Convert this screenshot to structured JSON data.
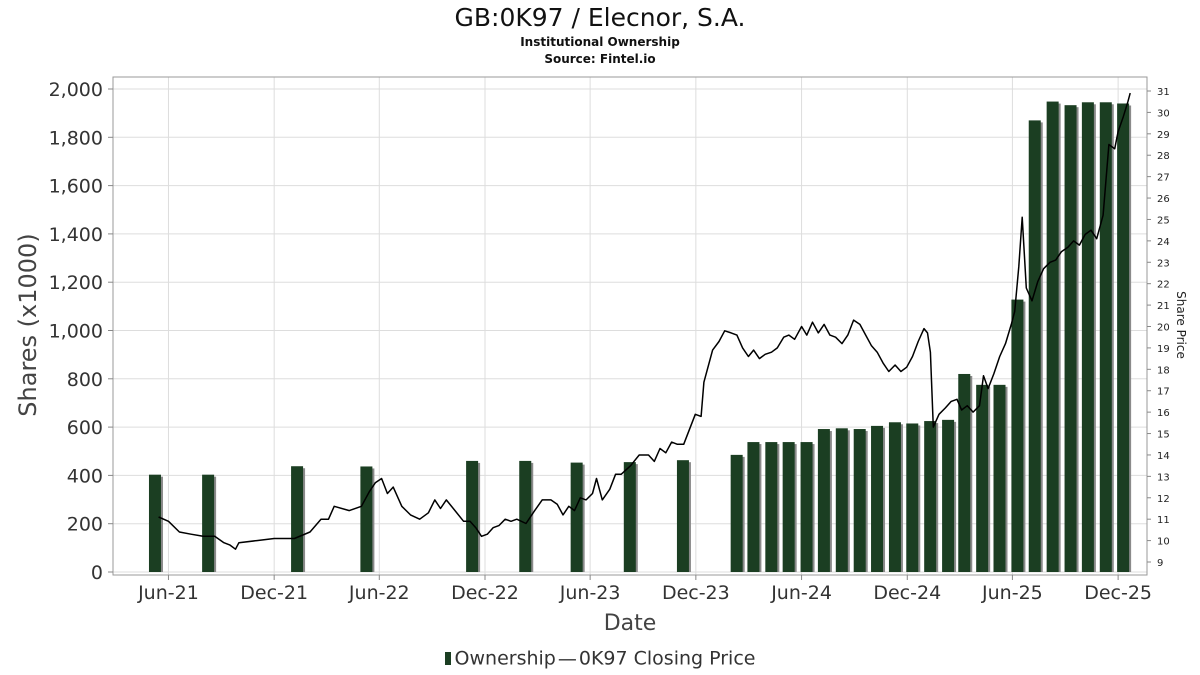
{
  "title": "GB:0K97 / Elecnor, S.A.",
  "subtitle": "Institutional Ownership",
  "source": "Source: Fintel.io",
  "legend": {
    "ownership": "Ownership",
    "separator": "—",
    "price": "0K97 Closing Price"
  },
  "colors": {
    "bar": "#1b3e22",
    "bar_shadow": "#8a8a8a",
    "line": "#000000",
    "grid": "#dddddd"
  },
  "chart_data": {
    "type": "bar+line",
    "xlabel": "Date",
    "ylabel": "Shares (x1000)",
    "y2label": "Share Price",
    "ylim": [
      0,
      2000
    ],
    "y2lim": [
      9,
      31
    ],
    "xlim": [
      "2021-02-25",
      "2026-01-20"
    ],
    "grid": true,
    "x_ticks": [
      {
        "label": "Jun-21",
        "date": "2021-06-01"
      },
      {
        "label": "Dec-21",
        "date": "2021-12-01"
      },
      {
        "label": "Jun-22",
        "date": "2022-06-01"
      },
      {
        "label": "Dec-22",
        "date": "2022-12-01"
      },
      {
        "label": "Jun-23",
        "date": "2023-06-01"
      },
      {
        "label": "Dec-23",
        "date": "2023-12-01"
      },
      {
        "label": "Jun-24",
        "date": "2024-06-01"
      },
      {
        "label": "Dec-24",
        "date": "2024-12-01"
      },
      {
        "label": "Jun-25",
        "date": "2025-06-01"
      },
      {
        "label": "Dec-25",
        "date": "2025-12-01"
      }
    ],
    "y_ticks": [
      "0",
      "200",
      "400",
      "600",
      "800",
      "1,000",
      "1,200",
      "1,400",
      "1,600",
      "1,800",
      "2,000"
    ],
    "y2_ticks": [
      "9",
      "10",
      "11",
      "12",
      "13",
      "14",
      "15",
      "16",
      "17",
      "18",
      "19",
      "20",
      "21",
      "22",
      "23",
      "24",
      "25",
      "26",
      "27",
      "28",
      "29",
      "30",
      "31"
    ],
    "series": [
      {
        "name": "Ownership",
        "type": "bar",
        "points": [
          {
            "date": "2021-04-30",
            "value": 403
          },
          {
            "date": "2021-07-31",
            "value": 403
          },
          {
            "date": "2022-01-01",
            "value": 438
          },
          {
            "date": "2022-05-01",
            "value": 437
          },
          {
            "date": "2022-10-31",
            "value": 460
          },
          {
            "date": "2023-01-31",
            "value": 460
          },
          {
            "date": "2023-04-30",
            "value": 453
          },
          {
            "date": "2023-07-31",
            "value": 455
          },
          {
            "date": "2023-10-31",
            "value": 463
          },
          {
            "date": "2024-02-01",
            "value": 485
          },
          {
            "date": "2024-03-01",
            "value": 538
          },
          {
            "date": "2024-04-01",
            "value": 538
          },
          {
            "date": "2024-05-01",
            "value": 538
          },
          {
            "date": "2024-06-01",
            "value": 538
          },
          {
            "date": "2024-07-01",
            "value": 592
          },
          {
            "date": "2024-08-01",
            "value": 595
          },
          {
            "date": "2024-09-01",
            "value": 592
          },
          {
            "date": "2024-10-01",
            "value": 605
          },
          {
            "date": "2024-11-01",
            "value": 620
          },
          {
            "date": "2024-12-01",
            "value": 615
          },
          {
            "date": "2025-01-01",
            "value": 625
          },
          {
            "date": "2025-02-01",
            "value": 630
          },
          {
            "date": "2025-03-01",
            "value": 820
          },
          {
            "date": "2025-04-01",
            "value": 775
          },
          {
            "date": "2025-05-01",
            "value": 775
          },
          {
            "date": "2025-06-01",
            "value": 1128
          },
          {
            "date": "2025-07-01",
            "value": 1870
          },
          {
            "date": "2025-08-01",
            "value": 1948
          },
          {
            "date": "2025-09-01",
            "value": 1933
          },
          {
            "date": "2025-10-01",
            "value": 1945
          },
          {
            "date": "2025-11-01",
            "value": 1945
          },
          {
            "date": "2025-12-01",
            "value": 1940
          }
        ]
      },
      {
        "name": "0K97 Closing Price",
        "type": "line",
        "points": [
          [
            "2021-05-15",
            11.1
          ],
          [
            "2021-06-01",
            10.9
          ],
          [
            "2021-06-20",
            10.4
          ],
          [
            "2021-07-10",
            10.3
          ],
          [
            "2021-07-31",
            10.2
          ],
          [
            "2021-08-20",
            10.2
          ],
          [
            "2021-09-05",
            9.9
          ],
          [
            "2021-09-15",
            9.8
          ],
          [
            "2021-09-25",
            9.6
          ],
          [
            "2021-10-01",
            9.9
          ],
          [
            "2021-11-01",
            10.0
          ],
          [
            "2021-12-01",
            10.1
          ],
          [
            "2022-01-05",
            10.1
          ],
          [
            "2022-02-01",
            10.4
          ],
          [
            "2022-02-20",
            11.0
          ],
          [
            "2022-03-05",
            11.0
          ],
          [
            "2022-03-15",
            11.6
          ],
          [
            "2022-04-10",
            11.4
          ],
          [
            "2022-05-01",
            11.6
          ],
          [
            "2022-05-15",
            12.3
          ],
          [
            "2022-05-25",
            12.7
          ],
          [
            "2022-06-05",
            12.9
          ],
          [
            "2022-06-15",
            12.2
          ],
          [
            "2022-06-25",
            12.5
          ],
          [
            "2022-07-10",
            11.6
          ],
          [
            "2022-07-25",
            11.2
          ],
          [
            "2022-08-10",
            11.0
          ],
          [
            "2022-08-25",
            11.3
          ],
          [
            "2022-09-05",
            11.9
          ],
          [
            "2022-09-15",
            11.5
          ],
          [
            "2022-09-25",
            11.9
          ],
          [
            "2022-10-10",
            11.4
          ],
          [
            "2022-10-25",
            10.9
          ],
          [
            "2022-11-05",
            10.9
          ],
          [
            "2022-11-15",
            10.6
          ],
          [
            "2022-11-25",
            10.2
          ],
          [
            "2022-12-05",
            10.3
          ],
          [
            "2022-12-15",
            10.6
          ],
          [
            "2022-12-25",
            10.7
          ],
          [
            "2023-01-05",
            11.0
          ],
          [
            "2023-01-15",
            10.9
          ],
          [
            "2023-01-25",
            11.0
          ],
          [
            "2023-02-10",
            10.8
          ],
          [
            "2023-02-25",
            11.4
          ],
          [
            "2023-03-10",
            11.9
          ],
          [
            "2023-03-25",
            11.9
          ],
          [
            "2023-04-05",
            11.7
          ],
          [
            "2023-04-15",
            11.2
          ],
          [
            "2023-04-25",
            11.6
          ],
          [
            "2023-05-05",
            11.4
          ],
          [
            "2023-05-15",
            12.0
          ],
          [
            "2023-05-25",
            11.9
          ],
          [
            "2023-06-05",
            12.2
          ],
          [
            "2023-06-12",
            12.9
          ],
          [
            "2023-06-22",
            11.9
          ],
          [
            "2023-07-05",
            12.4
          ],
          [
            "2023-07-15",
            13.1
          ],
          [
            "2023-07-25",
            13.1
          ],
          [
            "2023-08-10",
            13.5
          ],
          [
            "2023-08-25",
            14.0
          ],
          [
            "2023-09-10",
            14.0
          ],
          [
            "2023-09-20",
            13.7
          ],
          [
            "2023-09-30",
            14.3
          ],
          [
            "2023-10-10",
            14.1
          ],
          [
            "2023-10-20",
            14.6
          ],
          [
            "2023-10-30",
            14.5
          ],
          [
            "2023-11-10",
            14.5
          ],
          [
            "2023-11-20",
            15.2
          ],
          [
            "2023-11-30",
            15.9
          ],
          [
            "2023-12-10",
            15.8
          ],
          [
            "2023-12-15",
            17.4
          ],
          [
            "2023-12-30",
            18.9
          ],
          [
            "2024-01-10",
            19.3
          ],
          [
            "2024-01-20",
            19.8
          ],
          [
            "2024-01-31",
            19.7
          ],
          [
            "2024-02-10",
            19.6
          ],
          [
            "2024-02-20",
            19.0
          ],
          [
            "2024-03-01",
            18.6
          ],
          [
            "2024-03-10",
            18.9
          ],
          [
            "2024-03-20",
            18.5
          ],
          [
            "2024-03-30",
            18.7
          ],
          [
            "2024-04-10",
            18.8
          ],
          [
            "2024-04-20",
            19.0
          ],
          [
            "2024-05-01",
            19.5
          ],
          [
            "2024-05-10",
            19.6
          ],
          [
            "2024-05-20",
            19.4
          ],
          [
            "2024-06-01",
            20.0
          ],
          [
            "2024-06-10",
            19.6
          ],
          [
            "2024-06-20",
            20.2
          ],
          [
            "2024-06-30",
            19.7
          ],
          [
            "2024-07-10",
            20.1
          ],
          [
            "2024-07-20",
            19.6
          ],
          [
            "2024-07-30",
            19.5
          ],
          [
            "2024-08-10",
            19.2
          ],
          [
            "2024-08-20",
            19.6
          ],
          [
            "2024-08-30",
            20.3
          ],
          [
            "2024-09-10",
            20.1
          ],
          [
            "2024-09-20",
            19.6
          ],
          [
            "2024-09-30",
            19.1
          ],
          [
            "2024-10-10",
            18.8
          ],
          [
            "2024-10-20",
            18.3
          ],
          [
            "2024-10-30",
            17.9
          ],
          [
            "2024-11-10",
            18.2
          ],
          [
            "2024-11-20",
            17.9
          ],
          [
            "2024-11-30",
            18.1
          ],
          [
            "2024-12-10",
            18.6
          ],
          [
            "2024-12-20",
            19.3
          ],
          [
            "2024-12-30",
            19.9
          ],
          [
            "2025-01-05",
            19.7
          ],
          [
            "2025-01-10",
            18.8
          ],
          [
            "2025-01-15",
            15.3
          ],
          [
            "2025-01-25",
            15.9
          ],
          [
            "2025-02-05",
            16.2
          ],
          [
            "2025-02-15",
            16.5
          ],
          [
            "2025-02-25",
            16.6
          ],
          [
            "2025-03-05",
            16.1
          ],
          [
            "2025-03-15",
            16.3
          ],
          [
            "2025-03-25",
            16.0
          ],
          [
            "2025-04-05",
            16.3
          ],
          [
            "2025-04-12",
            17.7
          ],
          [
            "2025-04-20",
            17.1
          ],
          [
            "2025-04-30",
            17.8
          ],
          [
            "2025-05-10",
            18.6
          ],
          [
            "2025-05-20",
            19.2
          ],
          [
            "2025-05-30",
            20.1
          ],
          [
            "2025-06-05",
            20.7
          ],
          [
            "2025-06-12",
            22.8
          ],
          [
            "2025-06-18",
            25.1
          ],
          [
            "2025-06-25",
            21.8
          ],
          [
            "2025-07-05",
            21.2
          ],
          [
            "2025-07-15",
            22.1
          ],
          [
            "2025-07-25",
            22.7
          ],
          [
            "2025-08-05",
            23.0
          ],
          [
            "2025-08-15",
            23.1
          ],
          [
            "2025-08-25",
            23.5
          ],
          [
            "2025-09-05",
            23.7
          ],
          [
            "2025-09-15",
            24.0
          ],
          [
            "2025-09-25",
            23.8
          ],
          [
            "2025-10-05",
            24.3
          ],
          [
            "2025-10-15",
            24.5
          ],
          [
            "2025-10-25",
            24.1
          ],
          [
            "2025-11-05",
            25.2
          ],
          [
            "2025-11-15",
            28.5
          ],
          [
            "2025-11-25",
            28.3
          ],
          [
            "2025-12-01",
            29.1
          ],
          [
            "2025-12-10",
            29.8
          ],
          [
            "2025-12-18",
            30.5
          ],
          [
            "2025-12-22",
            30.9
          ]
        ]
      }
    ]
  }
}
